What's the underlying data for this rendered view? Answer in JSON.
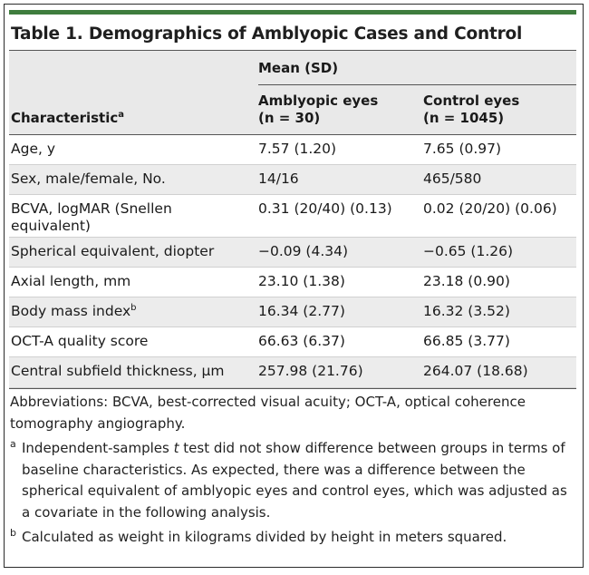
{
  "title": "Table 1. Demographics of Amblyopic Cases and Control",
  "header": {
    "group_label": "Mean (SD)",
    "characteristic_label": "Characteristic",
    "characteristic_mark": "a",
    "amblyopic_line1": "Amblyopic eyes",
    "amblyopic_line2": "(n = 30)",
    "control_line1": "Control eyes",
    "control_line2": "(n = 1045)"
  },
  "rows": [
    {
      "characteristic": "Age, y",
      "amblyopic": "7.57 (1.20)",
      "control": "7.65 (0.97)"
    },
    {
      "characteristic": "Sex, male/female, No.",
      "amblyopic": "14/16",
      "control": "465/580"
    },
    {
      "characteristic": "BCVA, logMAR (Snellen equivalent)",
      "amblyopic": "0.31 (20/40) (0.13)",
      "control": "0.02 (20/20) (0.06)"
    },
    {
      "characteristic": "Spherical equivalent, diopter",
      "amblyopic": "−0.09 (4.34)",
      "control": "−0.65 (1.26)"
    },
    {
      "characteristic": "Axial length, mm",
      "amblyopic": "23.10 (1.38)",
      "control": "23.18 (0.90)"
    },
    {
      "characteristic": "Body mass index",
      "mark": "b",
      "amblyopic": "16.34 (2.77)",
      "control": "16.32 (3.52)"
    },
    {
      "characteristic": "OCT-A quality score",
      "amblyopic": "66.63 (6.37)",
      "control": "66.85 (3.77)"
    },
    {
      "characteristic": "Central subfield thickness, µm",
      "amblyopic": "257.98 (21.76)",
      "control": "264.07 (18.68)"
    }
  ],
  "notes": {
    "abbreviations": "Abbreviations: BCVA, best-corrected visual acuity; OCT-A, optical coherence tomography angiography.",
    "footnote_a_mark": "a",
    "footnote_a_pre": "Independent-samples ",
    "footnote_a_italic": "t",
    "footnote_a_post": " test did not show difference between groups in terms of baseline characteristics. As expected, there was a difference between the spherical equivalent of amblyopic eyes and control eyes, which was adjusted as a covariate in the following analysis.",
    "footnote_b_mark": "b",
    "footnote_b": "Calculated as weight in kilograms divided by height in meters squared."
  },
  "colors": {
    "accent_rule": "#3f7d3e",
    "header_bg": "#e9e9e9",
    "alt_row_bg": "#ececec"
  }
}
